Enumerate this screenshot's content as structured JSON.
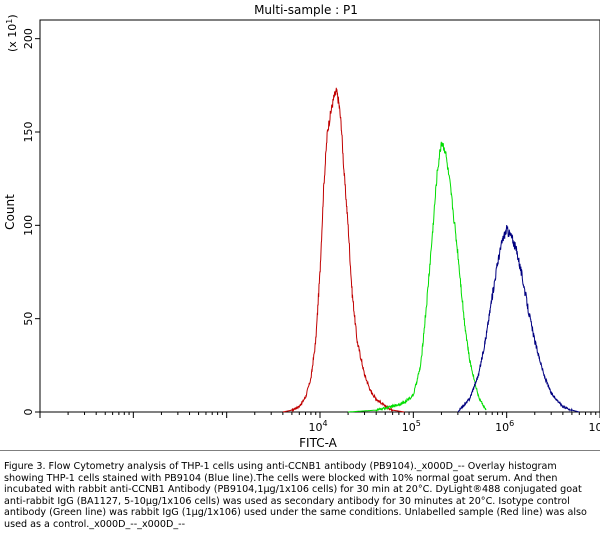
{
  "chart_data": {
    "type": "line",
    "title": "Multi-sample : P1",
    "xlabel": "FITC-A",
    "ylabel": "Count",
    "y_multiplier_label": "(x 10",
    "y_multiplier_exp": "1",
    "x_scale": "log",
    "xlim": [
      10,
      10000000
    ],
    "ylim": [
      0,
      210
    ],
    "x_ticks": [
      {
        "base": "10",
        "exp": "4",
        "value": 10000
      },
      {
        "base": "10",
        "exp": "5",
        "value": 100000
      },
      {
        "base": "10",
        "exp": "6",
        "value": 1000000
      },
      {
        "base": "10",
        "exp": "7",
        "value": 10000000
      }
    ],
    "y_ticks": [
      0,
      50,
      100,
      150,
      200
    ],
    "series": [
      {
        "color": "#c00000",
        "x": [
          4000,
          5000,
          6000,
          7000,
          8000,
          9000,
          10000,
          11000,
          12000,
          13000,
          14000,
          15000,
          16000,
          17000,
          18000,
          20000,
          22000,
          25000,
          30000,
          35000,
          40000,
          50000,
          60000,
          80000
        ],
        "y": [
          0,
          1,
          3,
          8,
          18,
          38,
          75,
          122,
          150,
          160,
          168,
          172,
          165,
          152,
          130,
          100,
          65,
          38,
          20,
          11,
          7,
          3,
          1,
          0
        ]
      },
      {
        "color": "#00dd00",
        "x": [
          20000,
          40000,
          60000,
          80000,
          100000,
          120000,
          140000,
          160000,
          180000,
          200000,
          220000,
          250000,
          300000,
          350000,
          400000,
          500000,
          600000
        ],
        "y": [
          0,
          1,
          3,
          5,
          9,
          25,
          60,
          95,
          128,
          145,
          140,
          120,
          85,
          50,
          28,
          8,
          1
        ]
      },
      {
        "color": "#000080",
        "x": [
          300000,
          400000,
          500000,
          600000,
          700000,
          800000,
          900000,
          1000000,
          1150000,
          1300000,
          1500000,
          1700000,
          2000000,
          2500000,
          3000000,
          4000000,
          5000000,
          6000000
        ],
        "y": [
          0,
          7,
          20,
          40,
          62,
          80,
          92,
          98,
          93,
          85,
          70,
          55,
          38,
          20,
          10,
          3,
          1,
          0
        ]
      }
    ],
    "grid": false,
    "legend": "none"
  },
  "caption": "Figure 3. Flow Cytometry analysis of THP-1 cells using anti-CCNB1 antibody (PB9104)._x000D_-- Overlay histogram showing THP-1 cells stained with PB9104 (Blue line).The cells were blocked with 10% normal goat serum. And then incubated with rabbit anti-CCNB1 Antibody (PB9104,1µg/1x106 cells) for 30 min at 20°C. DyLight®488 conjugated goat anti-rabbit IgG (BA1127, 5-10µg/1x106 cells) was used as secondary antibody for 30 minutes at 20°C. Isotype control antibody (Green line) was rabbit IgG (1µg/1x106) used under the same conditions. Unlabelled sample (Red line) was also used as a control._x000D_--_x000D_--"
}
